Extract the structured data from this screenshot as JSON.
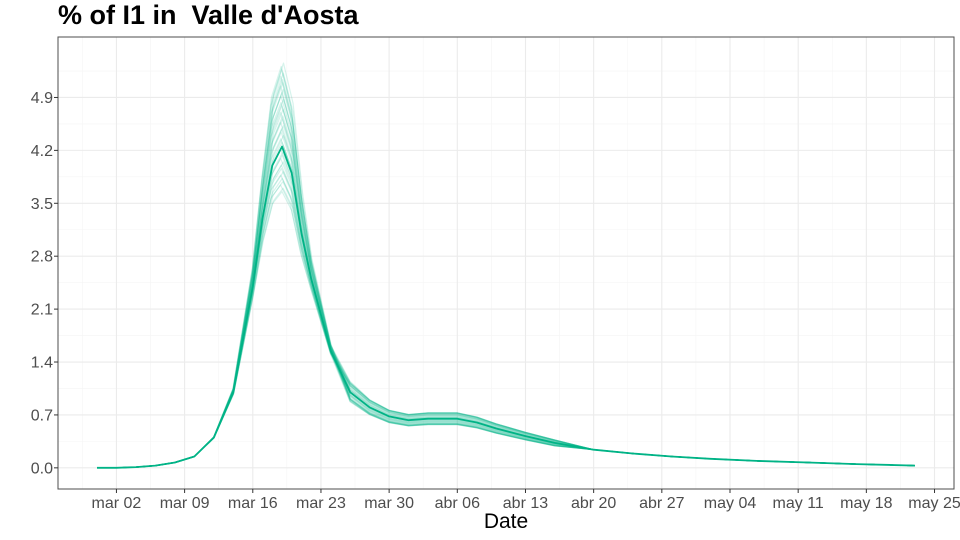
{
  "chart_data": {
    "type": "line",
    "title": "% of I1 in  Valle d'Aosta",
    "xlabel": "Date",
    "ylabel": "",
    "x_ticks": [
      "mar 02",
      "mar 09",
      "mar 16",
      "mar 23",
      "mar 30",
      "abr 06",
      "abr 13",
      "abr 20",
      "abr 27",
      "may 04",
      "may 11",
      "may 18",
      "may 25"
    ],
    "y_ticks": [
      "0.0",
      "0.7",
      "1.4",
      "2.1",
      "2.8",
      "3.5",
      "4.2",
      "4.9"
    ],
    "xlim": [
      "2020-02-25",
      "2020-05-27"
    ],
    "ylim": [
      -0.28,
      5.7
    ],
    "grid": true,
    "legend": "none",
    "color": "#00b386",
    "series": [
      {
        "role": "median",
        "x": [
          "2020-02-29",
          "2020-03-02",
          "2020-03-04",
          "2020-03-06",
          "2020-03-08",
          "2020-03-10",
          "2020-03-12",
          "2020-03-14",
          "2020-03-16",
          "2020-03-17",
          "2020-03-18",
          "2020-03-19",
          "2020-03-20",
          "2020-03-21",
          "2020-03-22",
          "2020-03-24",
          "2020-03-26",
          "2020-03-28",
          "2020-03-30",
          "2020-04-01",
          "2020-04-03",
          "2020-04-06",
          "2020-04-08",
          "2020-04-10",
          "2020-04-13",
          "2020-04-16",
          "2020-04-20",
          "2020-04-24",
          "2020-04-28",
          "2020-05-02",
          "2020-05-07",
          "2020-05-12",
          "2020-05-17",
          "2020-05-23"
        ],
        "y": [
          0.0,
          0.0,
          0.01,
          0.03,
          0.07,
          0.15,
          0.4,
          1.0,
          2.4,
          3.3,
          4.0,
          4.25,
          3.9,
          3.1,
          2.5,
          1.55,
          1.0,
          0.8,
          0.68,
          0.63,
          0.65,
          0.65,
          0.6,
          0.52,
          0.42,
          0.33,
          0.24,
          0.19,
          0.15,
          0.12,
          0.09,
          0.07,
          0.05,
          0.03
        ]
      }
    ]
  }
}
